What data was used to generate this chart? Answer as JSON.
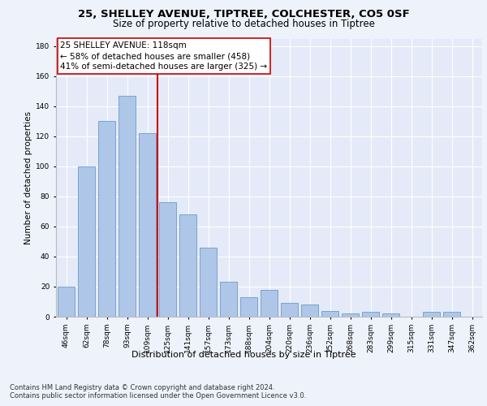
{
  "title1": "25, SHELLEY AVENUE, TIPTREE, COLCHESTER, CO5 0SF",
  "title2": "Size of property relative to detached houses in Tiptree",
  "xlabel": "Distribution of detached houses by size in Tiptree",
  "ylabel": "Number of detached properties",
  "categories": [
    "46sqm",
    "62sqm",
    "78sqm",
    "93sqm",
    "109sqm",
    "125sqm",
    "141sqm",
    "157sqm",
    "173sqm",
    "188sqm",
    "204sqm",
    "220sqm",
    "236sqm",
    "252sqm",
    "268sqm",
    "283sqm",
    "299sqm",
    "315sqm",
    "331sqm",
    "347sqm",
    "362sqm"
  ],
  "values": [
    20,
    100,
    130,
    147,
    122,
    76,
    68,
    46,
    23,
    13,
    18,
    9,
    8,
    4,
    2,
    3,
    2,
    0,
    3,
    3,
    0
  ],
  "bar_color": "#aec6e8",
  "bar_edge_color": "#5a8fc2",
  "vline_x_index": 4,
  "vline_color": "#cc0000",
  "annotation_line1": "25 SHELLEY AVENUE: 118sqm",
  "annotation_line2": "← 58% of detached houses are smaller (458)",
  "annotation_line3": "41% of semi-detached houses are larger (325) →",
  "annotation_box_color": "#ffffff",
  "annotation_box_edge_color": "#cc0000",
  "ylim": [
    0,
    185
  ],
  "yticks": [
    0,
    20,
    40,
    60,
    80,
    100,
    120,
    140,
    160,
    180
  ],
  "background_color": "#eef2fb",
  "plot_background": "#e4eaf7",
  "grid_color": "#ffffff",
  "footer_text": "Contains HM Land Registry data © Crown copyright and database right 2024.\nContains public sector information licensed under the Open Government Licence v3.0.",
  "title1_fontsize": 9.5,
  "title2_fontsize": 8.5,
  "xlabel_fontsize": 8,
  "ylabel_fontsize": 7.5,
  "tick_fontsize": 6.5,
  "annotation_fontsize": 7.5,
  "footer_fontsize": 6.0
}
